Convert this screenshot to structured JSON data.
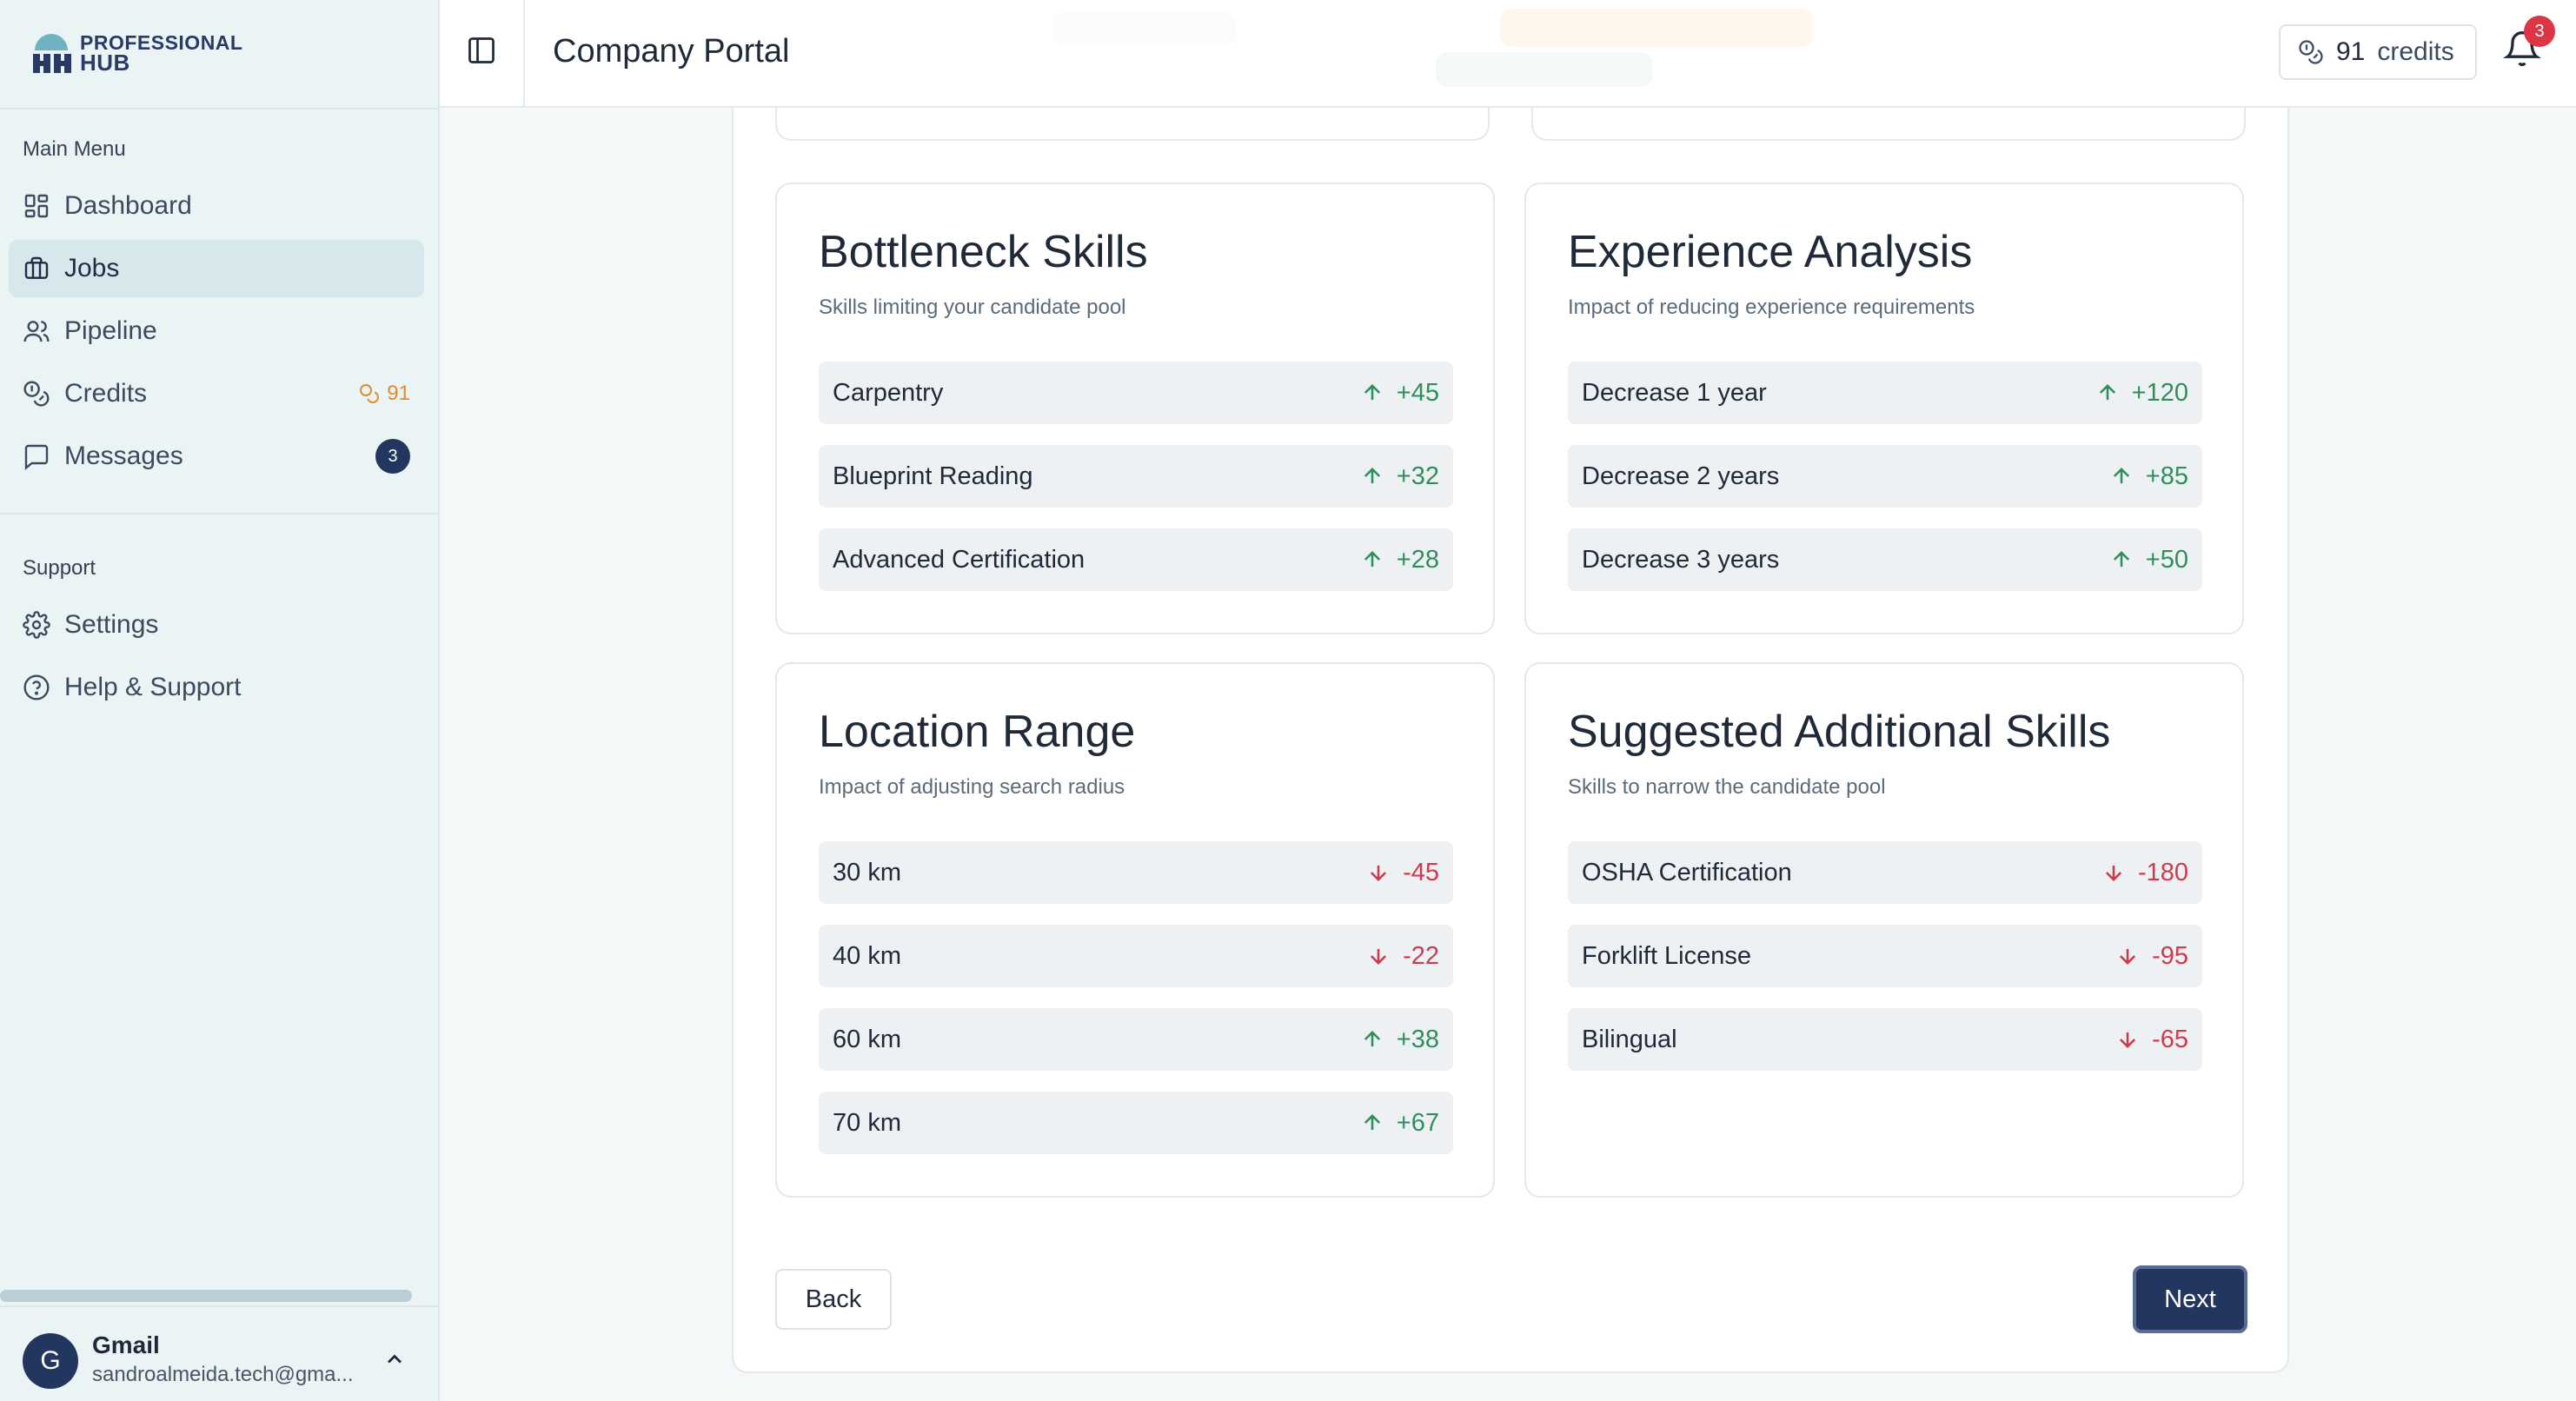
{
  "app": {
    "logo_line1": "PROFESSIONAL",
    "logo_line2": "HUB",
    "page_title": "Company Portal"
  },
  "header": {
    "credits_value": "91",
    "credits_label": "credits",
    "notifications_count": "3"
  },
  "sidebar": {
    "main_menu_label": "Main Menu",
    "support_label": "Support",
    "items": [
      {
        "label": "Dashboard",
        "icon": "dashboard-icon"
      },
      {
        "label": "Jobs",
        "icon": "briefcase-icon",
        "active": true
      },
      {
        "label": "Pipeline",
        "icon": "users-icon"
      },
      {
        "label": "Credits",
        "icon": "coins-icon",
        "badge": "91"
      },
      {
        "label": "Messages",
        "icon": "message-icon",
        "badge": "3"
      }
    ],
    "support_items": [
      {
        "label": "Settings",
        "icon": "gear-icon"
      },
      {
        "label": "Help & Support",
        "icon": "help-circle-icon"
      }
    ]
  },
  "user": {
    "avatar_initial": "G",
    "name": "Gmail",
    "email": "sandroalmeida.tech@gma..."
  },
  "cards": {
    "bottleneck": {
      "title": "Bottleneck Skills",
      "subtitle": "Skills limiting your candidate pool",
      "rows": [
        {
          "label": "Carpentry",
          "change": "+45",
          "direction": "up"
        },
        {
          "label": "Blueprint Reading",
          "change": "+32",
          "direction": "up"
        },
        {
          "label": "Advanced Certification",
          "change": "+28",
          "direction": "up"
        }
      ]
    },
    "experience": {
      "title": "Experience Analysis",
      "subtitle": "Impact of reducing experience requirements",
      "rows": [
        {
          "label": "Decrease 1 year",
          "change": "+120",
          "direction": "up"
        },
        {
          "label": "Decrease 2 years",
          "change": "+85",
          "direction": "up"
        },
        {
          "label": "Decrease 3 years",
          "change": "+50",
          "direction": "up"
        }
      ]
    },
    "location": {
      "title": "Location Range",
      "subtitle": "Impact of adjusting search radius",
      "rows": [
        {
          "label": "30 km",
          "change": "-45",
          "direction": "down"
        },
        {
          "label": "40 km",
          "change": "-22",
          "direction": "down"
        },
        {
          "label": "60 km",
          "change": "+38",
          "direction": "up"
        },
        {
          "label": "70 km",
          "change": "+67",
          "direction": "up"
        }
      ]
    },
    "suggested": {
      "title": "Suggested Additional Skills",
      "subtitle": "Skills to narrow the candidate pool",
      "rows": [
        {
          "label": "OSHA Certification",
          "change": "-180",
          "direction": "down"
        },
        {
          "label": "Forklift License",
          "change": "-95",
          "direction": "down"
        },
        {
          "label": "Bilingual",
          "change": "-65",
          "direction": "down"
        }
      ]
    }
  },
  "actions": {
    "back_label": "Back",
    "next_label": "Next"
  },
  "colors": {
    "primary": "#233660",
    "positive": "#2f8f5b",
    "negative": "#d03a4a",
    "credit_accent": "#e28a2e",
    "notification": "#dc3545"
  }
}
